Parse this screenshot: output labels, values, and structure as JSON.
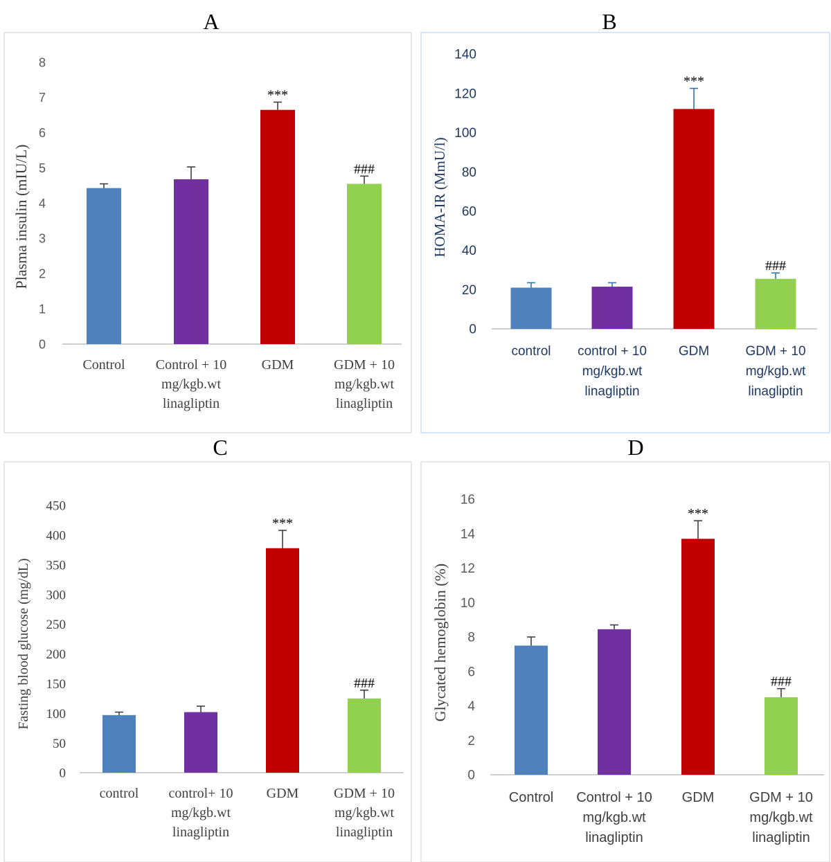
{
  "colors": {
    "blue": "#4f81bd",
    "purple": "#7030a0",
    "red": "#c00000",
    "green": "#92d050",
    "axis_text": "#595959",
    "navy_text": "#1f3864",
    "error_bar_blue": "#2e75b6",
    "error_bar_dark": "#404040"
  },
  "chart_data": [
    {
      "panel_label": "A",
      "type": "bar",
      "categories": [
        [
          "Control"
        ],
        [
          "Control + 10",
          "mg/kgb.wt",
          "linagliptin"
        ],
        [
          "GDM"
        ],
        [
          "GDM + 10",
          "mg/kgb.wt",
          "linagliptin"
        ]
      ],
      "values": [
        4.43,
        4.68,
        6.65,
        4.55
      ],
      "errors": [
        0.12,
        0.35,
        0.22,
        0.22
      ],
      "annotations": [
        "",
        "",
        "***",
        "###"
      ],
      "ylabel": "Plasma insulin (mIU/L)",
      "ylim": [
        0,
        8
      ],
      "yticks": [
        0,
        1,
        2,
        3,
        4,
        5,
        6,
        7,
        8
      ],
      "bar_colors": [
        "blue",
        "purple",
        "red",
        "green"
      ]
    },
    {
      "panel_label": "B",
      "type": "bar",
      "categories": [
        [
          "control"
        ],
        [
          "control + 10",
          "mg/kgb.wt",
          "linagliptin"
        ],
        [
          "GDM"
        ],
        [
          "GDM + 10",
          "mg/kgb.wt",
          "linagliptin"
        ]
      ],
      "values": [
        21,
        21.5,
        112,
        25.5
      ],
      "errors": [
        2.5,
        2,
        10.5,
        3
      ],
      "annotations": [
        "",
        "",
        "***",
        "###"
      ],
      "ylabel": "HOMA-IR (MmU/l)",
      "ylim": [
        0,
        140
      ],
      "yticks": [
        0,
        20,
        40,
        60,
        80,
        100,
        120,
        140
      ],
      "bar_colors": [
        "blue",
        "purple",
        "red",
        "green"
      ]
    },
    {
      "panel_label": "C",
      "type": "bar",
      "categories": [
        [
          "control"
        ],
        [
          "control+ 10",
          "mg/kgb.wt",
          "linagliptin"
        ],
        [
          "GDM"
        ],
        [
          "GDM + 10",
          "mg/kgb.wt",
          "linagliptin"
        ]
      ],
      "values": [
        97,
        102,
        378,
        125
      ],
      "errors": [
        5,
        10,
        30,
        14
      ],
      "annotations": [
        "",
        "",
        "***",
        "###"
      ],
      "ylabel": "Fasting blood glucose (mg/dL)",
      "ylim": [
        0,
        450
      ],
      "yticks": [
        0,
        50,
        100,
        150,
        200,
        250,
        300,
        350,
        400,
        450
      ],
      "bar_colors": [
        "blue",
        "purple",
        "red",
        "green"
      ]
    },
    {
      "panel_label": "D",
      "type": "bar",
      "categories": [
        [
          "Control"
        ],
        [
          "Control + 10",
          "mg/kgb.wt",
          "linagliptin"
        ],
        [
          "GDM"
        ],
        [
          "GDM + 10",
          "mg/kgb.wt",
          "linagliptin"
        ]
      ],
      "values": [
        7.5,
        8.45,
        13.7,
        4.5
      ],
      "errors": [
        0.5,
        0.25,
        1.05,
        0.5
      ],
      "annotations": [
        "",
        "",
        "***",
        "###"
      ],
      "ylabel": "Glycated hemoglobin (%)",
      "ylim": [
        0,
        16
      ],
      "yticks": [
        0,
        2,
        4,
        6,
        8,
        10,
        12,
        14,
        16
      ],
      "bar_colors": [
        "blue",
        "purple",
        "red",
        "green"
      ]
    }
  ]
}
